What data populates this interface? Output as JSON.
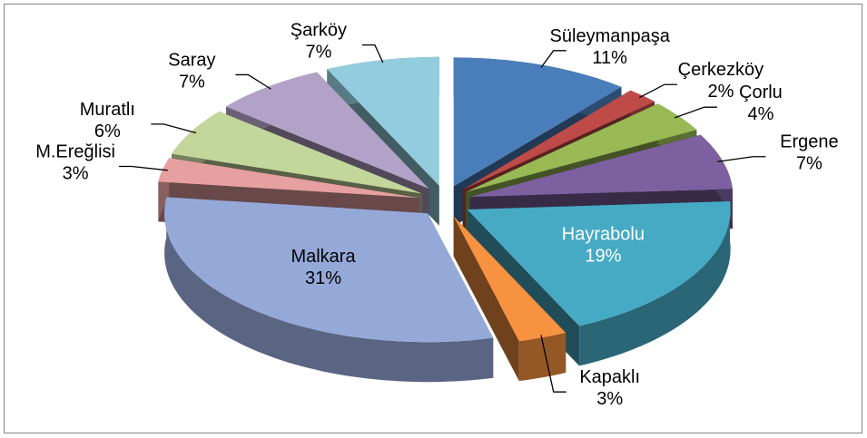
{
  "chart_data": {
    "type": "pie3d",
    "categories": [
      "Süleymanpaşa",
      "Çerkezköy",
      "Çorlu",
      "Ergene",
      "Hayrabolu",
      "Kapaklı",
      "Malkara",
      "M.Ereğlisi",
      "Muratlı",
      "Saray",
      "Şarköy"
    ],
    "values": [
      11,
      2,
      4,
      7,
      19,
      3,
      31,
      3,
      6,
      7,
      7
    ],
    "value_labels": [
      "11%",
      "2%",
      "4%",
      "7%",
      "19%",
      "3%",
      "31%",
      "3%",
      "6%",
      "7%",
      "7%"
    ],
    "colors": [
      "#4a7ebb",
      "#be4b48",
      "#98b954",
      "#7d60a0",
      "#46aac5",
      "#f69240",
      "#95a9d9",
      "#e6a09f",
      "#c3d69b",
      "#b3a2c7",
      "#93cddd"
    ]
  }
}
